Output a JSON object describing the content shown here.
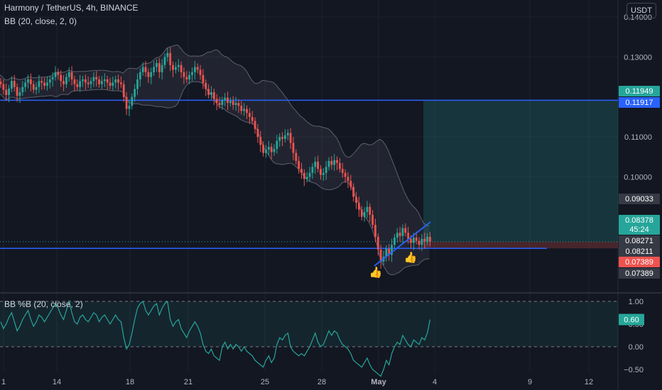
{
  "header": {
    "symbol_line": "Harmony / TetherUS, 4h, BINANCE",
    "bb_line": "BB (20, close, 2, 0)",
    "currency": "USDT",
    "pctb_line": "BB %B (20, close, 2)"
  },
  "colors": {
    "background": "#131722",
    "up": "#26a69a",
    "down": "#ef5350",
    "line_blue": "#2962ff",
    "pctb_line": "#26a69a"
  },
  "chart_data": [
    {
      "type": "candlestick",
      "symbol": "Harmony / TetherUS",
      "interval": "4h",
      "exchange": "BINANCE",
      "indicator": "BB (20, close, 2, 0)",
      "y_ticks": [
        0.14,
        0.13,
        0.11,
        0.1
      ],
      "y_tick_labels": [
        "0.14000",
        "0.13000",
        "0.11000",
        "0.10000"
      ],
      "ylim": [
        0.0715,
        0.1425
      ],
      "x_tick_labels": [
        "1",
        "14",
        "18",
        "21",
        "25",
        "28",
        "May",
        "4",
        "9",
        "12"
      ],
      "price_labels": [
        {
          "value": 0.11949,
          "text": "0.11949",
          "color": "#26a69a"
        },
        {
          "value": 0.11917,
          "text": "0.11917",
          "color": "#2962ff"
        },
        {
          "value": 0.09033,
          "text": "0.09033",
          "color": "#363a45"
        },
        {
          "value": 0.08378,
          "text": "0.08378",
          "sub": "45:24",
          "color": "#26a69a"
        },
        {
          "value": 0.08271,
          "text": "0.08271",
          "color": "#363a45"
        },
        {
          "value": 0.08211,
          "text": "0.08211",
          "color": "#363a45"
        },
        {
          "value": 0.07389,
          "text": "0.07389",
          "color": "#ef5350"
        },
        {
          "value": 0.07389,
          "text": "0.07389",
          "color": "#363a45"
        }
      ],
      "horizontal_lines": [
        0.11917,
        0.08211
      ],
      "current_price": 0.08378,
      "long_position": {
        "entry": 0.08378,
        "target": 0.11917,
        "stop": 0.08211
      },
      "trendline": {
        "from": [
          0.0,
          0.0739
        ],
        "to": [
          1.0,
          0.084
        ]
      },
      "closes": [
        0.1232,
        0.1218,
        0.1205,
        0.1221,
        0.124,
        0.1225,
        0.1203,
        0.1212,
        0.1225,
        0.1236,
        0.1244,
        0.1232,
        0.1218,
        0.1225,
        0.124,
        0.1236,
        0.1228,
        0.1236,
        0.1244,
        0.125,
        0.1262,
        0.1255,
        0.124,
        0.1232,
        0.125,
        0.1262,
        0.1244,
        0.1232,
        0.1225,
        0.124,
        0.1244,
        0.1236,
        0.1232,
        0.124,
        0.125,
        0.1244,
        0.1232,
        0.124,
        0.1244,
        0.1236,
        0.1228,
        0.1236,
        0.1244,
        0.1236,
        0.1232,
        0.12,
        0.117,
        0.1178,
        0.12,
        0.122,
        0.1244,
        0.1262,
        0.1275,
        0.1262,
        0.125,
        0.1262,
        0.1275,
        0.1285,
        0.1262,
        0.128,
        0.13,
        0.131,
        0.128,
        0.1268,
        0.1275,
        0.128,
        0.1262,
        0.125,
        0.1244,
        0.1255,
        0.1262,
        0.1275,
        0.1268,
        0.1255,
        0.1235,
        0.122,
        0.1205,
        0.1212,
        0.1195,
        0.1185,
        0.118,
        0.1192,
        0.1198,
        0.1185,
        0.119,
        0.118,
        0.1185,
        0.1178,
        0.1165,
        0.117,
        0.116,
        0.115,
        0.114,
        0.112,
        0.11,
        0.108,
        0.106,
        0.1068,
        0.1075,
        0.1062,
        0.107,
        0.109,
        0.11,
        0.1095,
        0.1104,
        0.111,
        0.1085,
        0.106,
        0.104,
        0.102,
        0.101,
        0.0995,
        0.1,
        0.101,
        0.1025,
        0.1038,
        0.102,
        0.1005,
        0.101,
        0.1025,
        0.104,
        0.103,
        0.1042,
        0.1035,
        0.102,
        0.101,
        0.1,
        0.099,
        0.0975,
        0.095,
        0.0935,
        0.0918,
        0.09,
        0.0912,
        0.0925,
        0.0905,
        0.088,
        0.085,
        0.0818,
        0.0788,
        0.08,
        0.082,
        0.0805,
        0.083,
        0.0848,
        0.086,
        0.0852,
        0.0872,
        0.086,
        0.0845,
        0.0835,
        0.0848,
        0.084,
        0.083,
        0.0845,
        0.0838,
        0.085,
        0.0838
      ]
    },
    {
      "type": "line",
      "title": "BB %B (20, close, 2)",
      "y_ticks": [
        1.0,
        0.5,
        0.0,
        -0.5
      ],
      "y_tick_labels": [
        "1.00",
        "0.50",
        "0.00",
        "−0.50"
      ],
      "ylim": [
        -0.55,
        1.1
      ],
      "current": {
        "value": 0.6,
        "text": "0.60"
      },
      "values": [
        0.55,
        0.4,
        0.5,
        0.65,
        0.75,
        0.55,
        0.35,
        0.45,
        0.6,
        0.7,
        0.8,
        0.6,
        0.45,
        0.55,
        0.7,
        0.65,
        0.55,
        0.65,
        0.75,
        0.85,
        0.95,
        0.85,
        0.7,
        0.6,
        0.8,
        1.0,
        0.75,
        0.55,
        0.5,
        0.65,
        0.7,
        0.6,
        0.55,
        0.65,
        0.75,
        0.7,
        0.55,
        0.65,
        0.7,
        0.6,
        0.5,
        0.6,
        0.7,
        0.6,
        0.55,
        0.2,
        -0.05,
        0.05,
        0.3,
        0.6,
        0.85,
        0.95,
        1.0,
        0.8,
        0.7,
        0.8,
        0.9,
        0.95,
        0.7,
        0.85,
        0.95,
        1.0,
        0.6,
        0.45,
        0.55,
        0.6,
        0.4,
        0.3,
        0.2,
        0.35,
        0.45,
        0.55,
        0.45,
        0.3,
        0.05,
        -0.1,
        -0.15,
        -0.05,
        -0.2,
        -0.25,
        -0.3,
        0.0,
        0.1,
        -0.05,
        0.05,
        -0.05,
        0.05,
        0.0,
        -0.1,
        0.0,
        -0.1,
        -0.15,
        -0.2,
        -0.3,
        -0.35,
        -0.4,
        -0.45,
        -0.3,
        -0.2,
        -0.35,
        -0.25,
        0.05,
        0.2,
        0.15,
        0.25,
        0.3,
        0.0,
        -0.1,
        -0.15,
        -0.2,
        -0.15,
        -0.2,
        -0.1,
        0.0,
        0.15,
        0.3,
        0.1,
        0.0,
        0.05,
        0.2,
        0.35,
        0.25,
        0.35,
        0.3,
        0.15,
        0.05,
        0.0,
        -0.05,
        -0.15,
        -0.3,
        -0.35,
        -0.4,
        -0.45,
        -0.35,
        -0.25,
        -0.4,
        -0.5,
        -0.55,
        -0.6,
        -0.65,
        -0.5,
        -0.3,
        -0.4,
        -0.15,
        0.0,
        0.1,
        0.05,
        0.25,
        0.15,
        0.05,
        0.0,
        0.15,
        0.1,
        0.05,
        0.2,
        0.15,
        0.3,
        0.6
      ]
    }
  ]
}
